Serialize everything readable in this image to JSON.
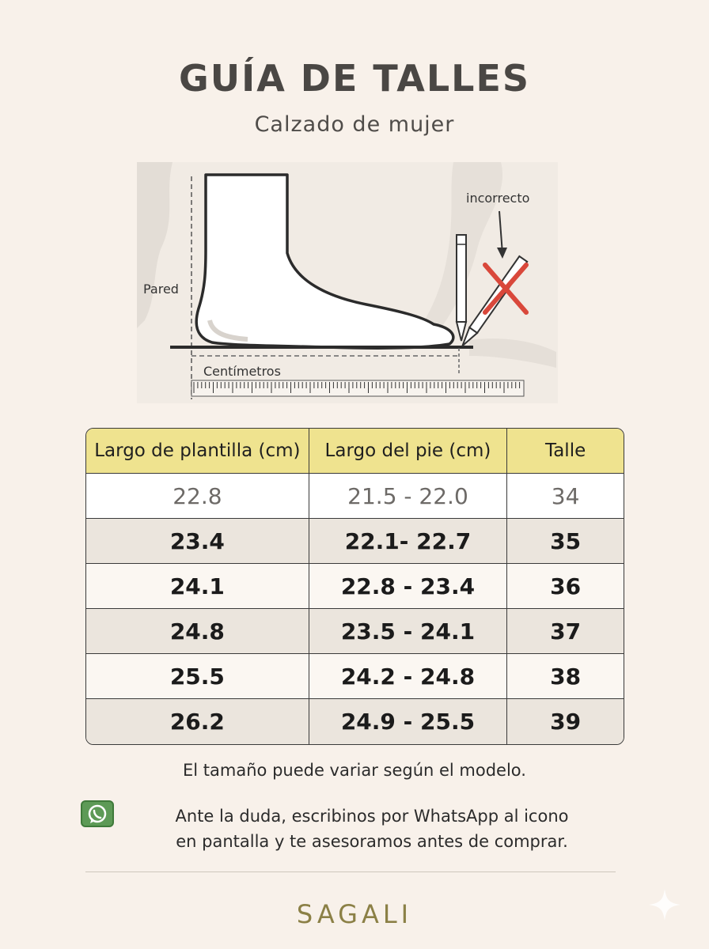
{
  "header": {
    "title": "GUÍA DE TALLES",
    "subtitle": "Calzado de mujer"
  },
  "figure": {
    "label_wall": "Pared",
    "label_incorrect": "incorrecto",
    "label_cm": "Centímetros"
  },
  "table": {
    "headers": [
      "Largo de plantilla (cm)",
      "Largo del pie (cm)",
      "Talle"
    ],
    "rows": [
      [
        "22.8",
        "21.5 - 22.0",
        "34"
      ],
      [
        "23.4",
        "22.1- 22.7",
        "35"
      ],
      [
        "24.1",
        "22.8 - 23.4",
        "36"
      ],
      [
        "24.8",
        "23.5 - 24.1",
        "37"
      ],
      [
        "25.5",
        "24.2 - 24.8",
        "38"
      ],
      [
        "26.2",
        "24.9 - 25.5",
        "39"
      ]
    ]
  },
  "footer": {
    "note": "El tamaño puede variar según el modelo.",
    "whatsapp_line1": "Ante la duda, escribinos por WhatsApp al icono",
    "whatsapp_line2": "en pantalla y te asesoramos antes de comprar.",
    "brand": "SAGALI"
  },
  "icons": [
    "whatsapp-icon",
    "pencil-icon",
    "cross-icon",
    "sparkle-icon"
  ],
  "colors": {
    "background": "#f8f1ea",
    "header_row": "#efe38f",
    "brand": "#8b8046",
    "cross": "#d9483b"
  }
}
